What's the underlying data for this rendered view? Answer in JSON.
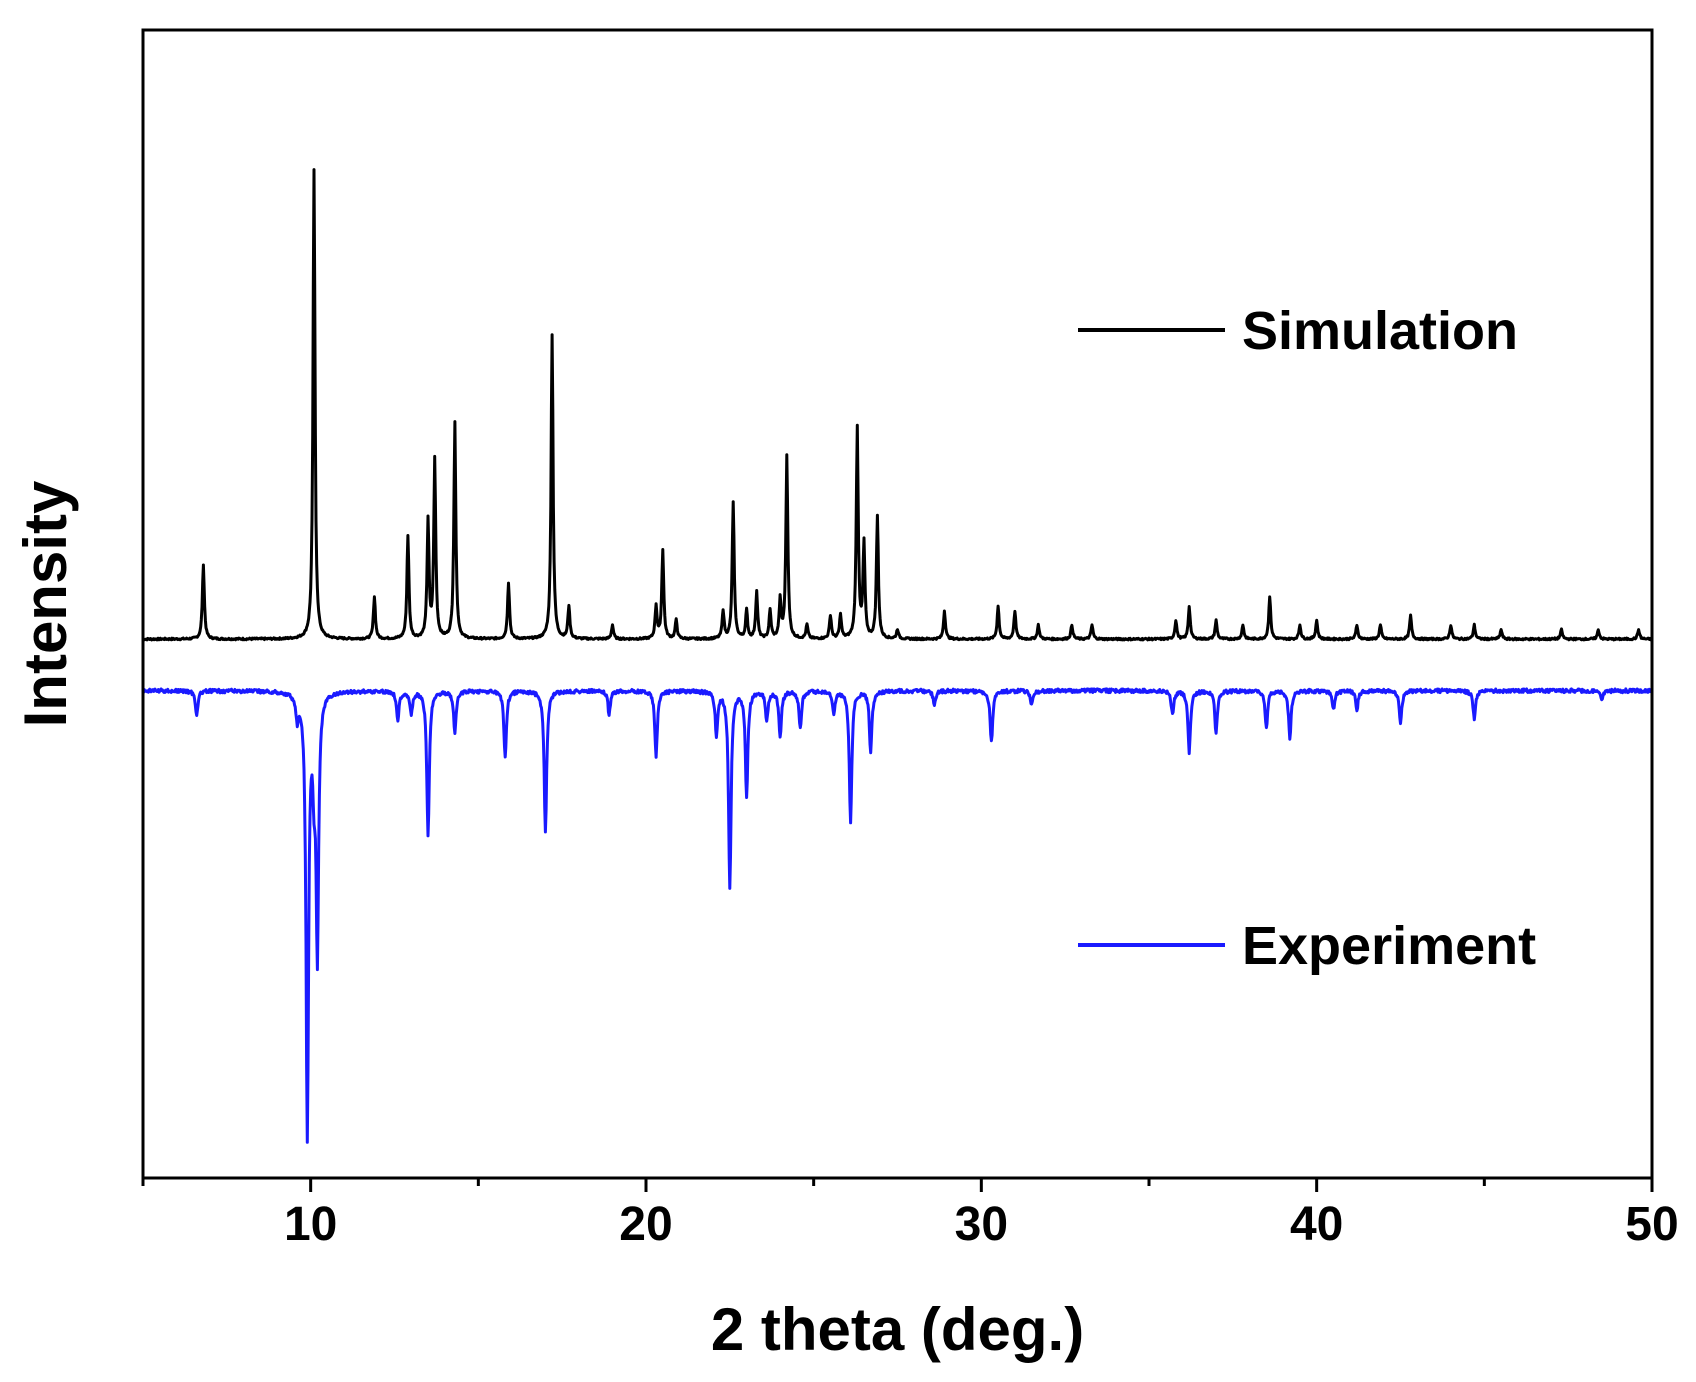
{
  "chart_data": {
    "type": "line",
    "title": "",
    "xlabel": "2 theta (deg.)",
    "ylabel": "Intensity",
    "xlim": [
      5,
      50
    ],
    "ylim": [
      -1.15,
      1.3
    ],
    "x_ticks": [
      10,
      20,
      30,
      40,
      50
    ],
    "x_tick_labels": [
      "10",
      "20",
      "30",
      "40",
      "50"
    ],
    "y_ticks_shown": false,
    "grid": false,
    "legend_position": "right",
    "series": [
      {
        "name": "Simulation",
        "color": "#000000",
        "baseline": 0,
        "width": 0.07,
        "peaks": [
          [
            6.8,
            0.16
          ],
          [
            10.1,
            1.0
          ],
          [
            11.9,
            0.09
          ],
          [
            12.9,
            0.22
          ],
          [
            13.5,
            0.25
          ],
          [
            13.7,
            0.38
          ],
          [
            14.3,
            0.46
          ],
          [
            15.9,
            0.12
          ],
          [
            17.2,
            0.65
          ],
          [
            17.7,
            0.07
          ],
          [
            19.0,
            0.03
          ],
          [
            20.3,
            0.07
          ],
          [
            20.5,
            0.19
          ],
          [
            20.9,
            0.04
          ],
          [
            22.3,
            0.06
          ],
          [
            22.6,
            0.29
          ],
          [
            23.0,
            0.06
          ],
          [
            23.3,
            0.1
          ],
          [
            23.7,
            0.06
          ],
          [
            24.0,
            0.08
          ],
          [
            24.2,
            0.39
          ],
          [
            24.8,
            0.03
          ],
          [
            25.5,
            0.05
          ],
          [
            25.8,
            0.05
          ],
          [
            26.3,
            0.45
          ],
          [
            26.5,
            0.2
          ],
          [
            26.9,
            0.26
          ],
          [
            27.5,
            0.02
          ],
          [
            28.9,
            0.06
          ],
          [
            30.5,
            0.07
          ],
          [
            31.0,
            0.06
          ],
          [
            31.7,
            0.03
          ],
          [
            32.7,
            0.03
          ],
          [
            33.3,
            0.03
          ],
          [
            35.8,
            0.04
          ],
          [
            36.2,
            0.07
          ],
          [
            37.0,
            0.04
          ],
          [
            37.8,
            0.03
          ],
          [
            38.6,
            0.09
          ],
          [
            39.5,
            0.03
          ],
          [
            40.0,
            0.04
          ],
          [
            41.2,
            0.03
          ],
          [
            41.9,
            0.03
          ],
          [
            42.8,
            0.05
          ],
          [
            44.0,
            0.03
          ],
          [
            44.7,
            0.03
          ],
          [
            45.5,
            0.02
          ],
          [
            47.3,
            0.02
          ],
          [
            48.4,
            0.02
          ],
          [
            49.6,
            0.02
          ]
        ]
      },
      {
        "name": "Experiment",
        "color": "#1a1aff",
        "baseline": -0.11,
        "width": 0.09,
        "peaks": [
          [
            6.6,
            0.05
          ],
          [
            9.6,
            0.05
          ],
          [
            9.9,
            0.94
          ],
          [
            10.1,
            0.15
          ],
          [
            10.2,
            0.55
          ],
          [
            12.6,
            0.06
          ],
          [
            13.0,
            0.05
          ],
          [
            13.5,
            0.31
          ],
          [
            14.3,
            0.09
          ],
          [
            15.8,
            0.14
          ],
          [
            17.0,
            0.3
          ],
          [
            18.9,
            0.05
          ],
          [
            20.3,
            0.14
          ],
          [
            22.1,
            0.09
          ],
          [
            22.5,
            0.42
          ],
          [
            23.0,
            0.22
          ],
          [
            23.6,
            0.06
          ],
          [
            24.0,
            0.1
          ],
          [
            24.6,
            0.08
          ],
          [
            25.6,
            0.05
          ],
          [
            26.1,
            0.28
          ],
          [
            26.7,
            0.13
          ],
          [
            28.6,
            0.03
          ],
          [
            30.3,
            0.11
          ],
          [
            31.5,
            0.03
          ],
          [
            35.7,
            0.05
          ],
          [
            36.2,
            0.13
          ],
          [
            37.0,
            0.09
          ],
          [
            38.5,
            0.08
          ],
          [
            39.2,
            0.1
          ],
          [
            40.5,
            0.04
          ],
          [
            41.2,
            0.04
          ],
          [
            42.5,
            0.07
          ],
          [
            44.7,
            0.06
          ],
          [
            48.5,
            0.02
          ]
        ]
      }
    ]
  }
}
